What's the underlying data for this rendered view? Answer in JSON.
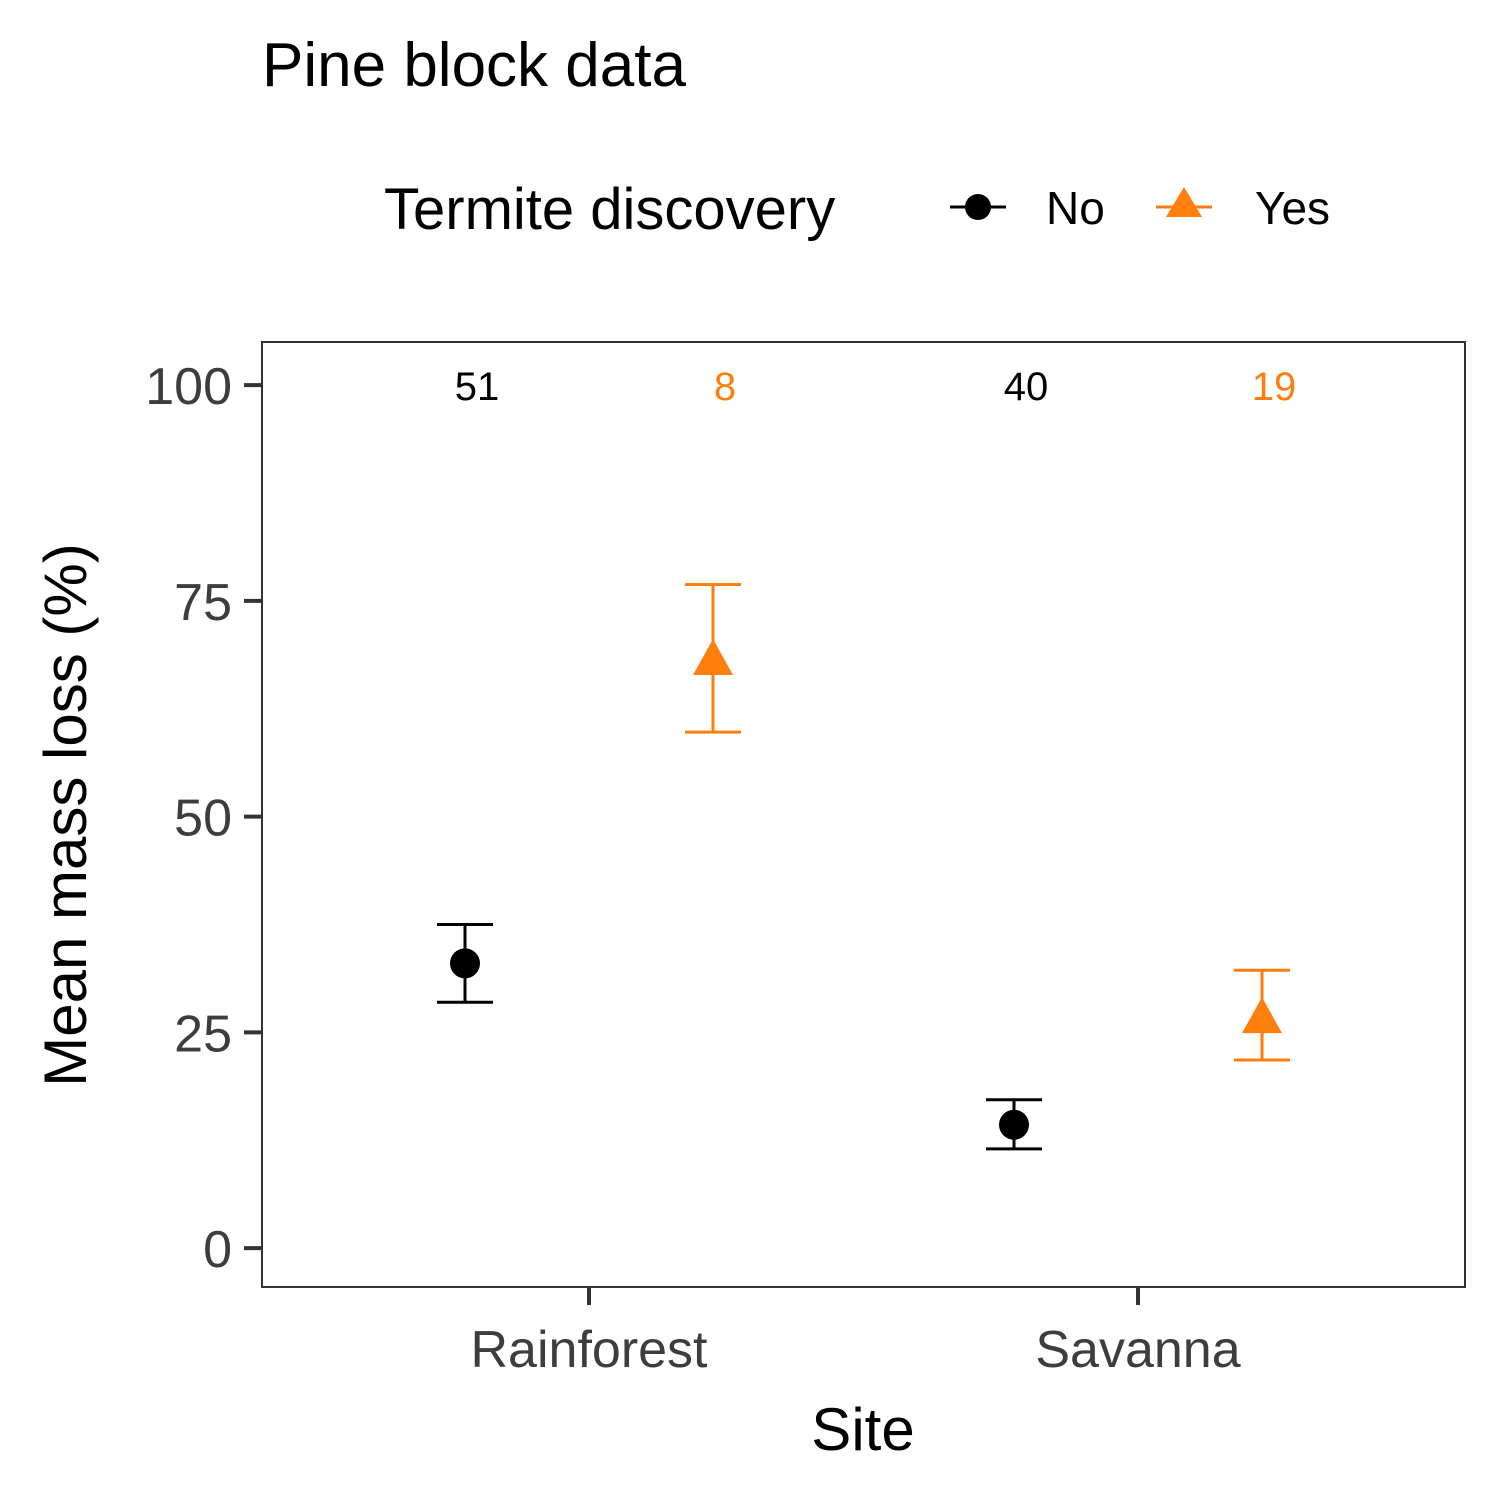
{
  "chart_data": {
    "type": "scatter",
    "title": "Pine block data",
    "xlabel": "Site",
    "ylabel": "Mean mass loss (%)",
    "categories": [
      "Rainforest",
      "Savanna"
    ],
    "ylim": [
      -4.5,
      105
    ],
    "yticks": [
      0,
      25,
      50,
      75,
      100
    ],
    "grid": false,
    "legend": {
      "title": "Termite discovery",
      "position": "top"
    },
    "series": [
      {
        "name": "No",
        "color": "#000000",
        "marker": "circle",
        "values": [
          33.0,
          14.3
        ],
        "lower": [
          28.5,
          11.5
        ],
        "upper": [
          37.5,
          17.2
        ],
        "n_labels": [
          "51",
          "40"
        ]
      },
      {
        "name": "Yes",
        "color": "#ff7f0e",
        "marker": "triangle",
        "values": [
          68.0,
          26.5
        ],
        "lower": [
          59.8,
          21.8
        ],
        "upper": [
          76.9,
          32.2
        ],
        "n_labels": [
          "8",
          "19"
        ]
      }
    ]
  }
}
